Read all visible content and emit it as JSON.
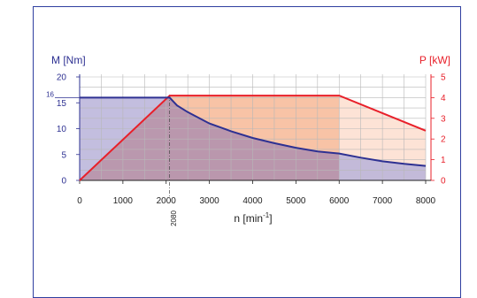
{
  "chart_data": {
    "type": "line",
    "xlabel_base": "n [min",
    "xlabel_exp": "-1",
    "xlabel_close": "]",
    "y_left_label": "M [Nm]",
    "y_right_label": "P [kW]",
    "x_ticks": [
      "0",
      "1000",
      "2000",
      "3000",
      "4000",
      "5000",
      "6000",
      "7000",
      "8000"
    ],
    "y_left_ticks": [
      "0",
      "5",
      "10",
      "15",
      "20"
    ],
    "y_right_ticks": [
      "0",
      "1",
      "2",
      "3",
      "4",
      "5"
    ],
    "extra_left_tick": "16",
    "marker_x_label": "2080",
    "xlim": [
      0,
      8000
    ],
    "ylim_left": [
      0,
      20
    ],
    "ylim_right": [
      0,
      5
    ],
    "grid": true,
    "colors": {
      "torque": "#2e3192",
      "power": "#e8202a",
      "axis_left": "#2e3192",
      "axis_right": "#e8202a",
      "fill_torque": "#b9b3d9",
      "fill_power": "#f8c3a6",
      "fill_power_light": "#fde3d6",
      "fill_overlap": "#b994a8"
    },
    "series": [
      {
        "axis": "left",
        "x": [
          0,
          2080,
          2250,
          2500,
          3000,
          3500,
          4000,
          4500,
          5000,
          5500,
          6000,
          6500,
          7000,
          7500,
          8000
        ],
        "values": [
          16.0,
          16.0,
          14.5,
          13.2,
          11.0,
          9.5,
          8.2,
          7.2,
          6.3,
          5.6,
          5.2,
          4.4,
          3.7,
          3.2,
          2.8
        ]
      },
      {
        "axis": "right",
        "x": [
          0,
          2080,
          6000,
          8000
        ],
        "values": [
          0,
          4.1,
          4.1,
          2.4
        ]
      }
    ]
  }
}
